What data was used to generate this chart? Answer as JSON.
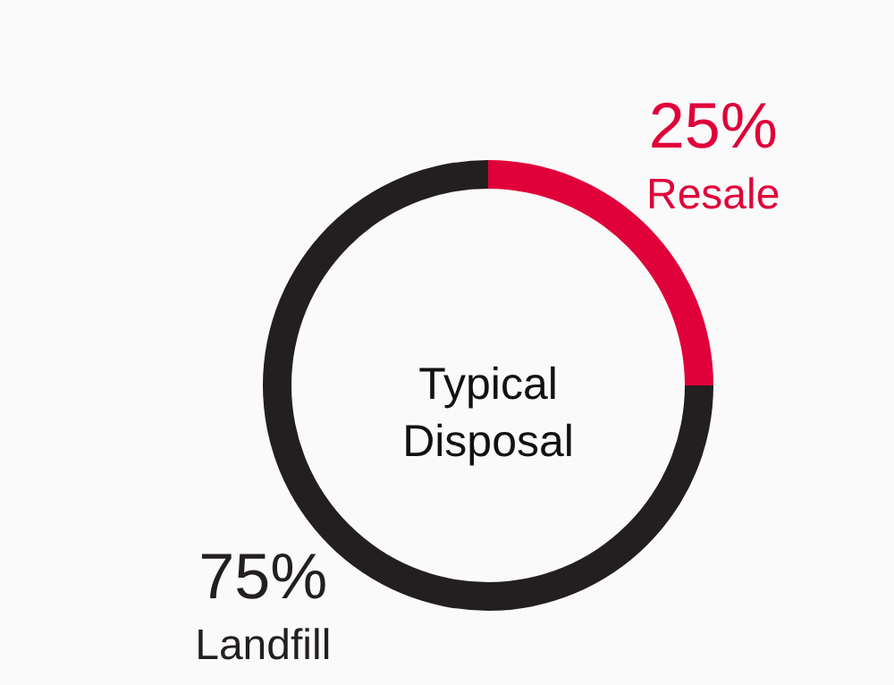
{
  "chart_data": {
    "type": "donut",
    "title": "Typical Disposal",
    "categories": [
      "Resale",
      "Landfill"
    ],
    "values": [
      25,
      75
    ],
    "colors": [
      "#e0003a",
      "#231f20"
    ],
    "value_labels": [
      "25%",
      "75%"
    ]
  }
}
